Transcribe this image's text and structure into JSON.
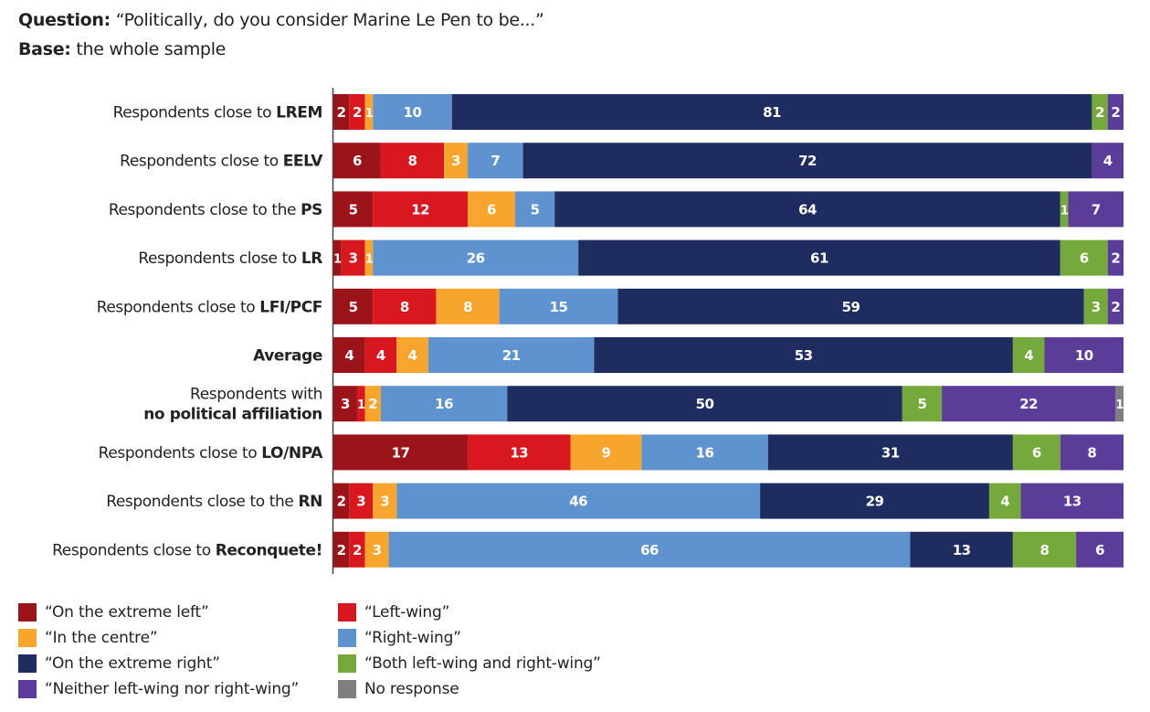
{
  "header": {
    "question_label": "Question:",
    "question_text": " “Politically, do you consider Marine Le Pen to be...”",
    "base_label": "Base:",
    "base_text": " the whole sample"
  },
  "chart_data": {
    "type": "bar",
    "orientation": "horizontal",
    "stacked": true,
    "title": "Politically, do you consider Marine Le Pen to be...",
    "xlabel": "",
    "ylabel": "",
    "xlim": [
      0,
      100
    ],
    "grid": false,
    "legend_position": "bottom",
    "categories": [
      {
        "prefix": "Respondents close to ",
        "bold": "LREM"
      },
      {
        "prefix": "Respondents close to ",
        "bold": "EELV"
      },
      {
        "prefix": "Respondents close to the ",
        "bold": "PS"
      },
      {
        "prefix": "Respondents close to ",
        "bold": "LR"
      },
      {
        "prefix": "Respondents close to ",
        "bold": "LFI/PCF"
      },
      {
        "prefix": "",
        "bold": "Average"
      },
      {
        "prefix": "Respondents with",
        "bold": "no political affiliation",
        "two_line": true
      },
      {
        "prefix": "Respondents close to ",
        "bold": "LO/NPA"
      },
      {
        "prefix": "Respondents close to the ",
        "bold": "RN"
      },
      {
        "prefix": "Respondents close to ",
        "bold": "Reconquete!"
      }
    ],
    "series": [
      {
        "name": "“On the extreme left”",
        "color": "#9b1419",
        "values": [
          2,
          6,
          5,
          1,
          5,
          4,
          3,
          17,
          2,
          2
        ]
      },
      {
        "name": "“Left-wing”",
        "color": "#d8171f",
        "values": [
          2,
          8,
          12,
          3,
          8,
          4,
          1,
          13,
          3,
          2
        ]
      },
      {
        "name": "“In the centre”",
        "color": "#f8a52d",
        "values": [
          1,
          3,
          6,
          1,
          8,
          4,
          2,
          9,
          3,
          3
        ]
      },
      {
        "name": "“Right-wing”",
        "color": "#5e93cf",
        "values": [
          10,
          7,
          5,
          26,
          15,
          21,
          16,
          16,
          46,
          66
        ]
      },
      {
        "name": "“On the extreme right”",
        "color": "#1f2c60",
        "values": [
          81,
          72,
          64,
          61,
          59,
          53,
          50,
          31,
          29,
          13
        ]
      },
      {
        "name": "“Both left-wing and right-wing”",
        "color": "#75a93c",
        "values": [
          2,
          0,
          1,
          6,
          3,
          4,
          5,
          6,
          4,
          8
        ]
      },
      {
        "name": "“Neither left-wing nor right-wing”",
        "color": "#5b3c99",
        "values": [
          2,
          4,
          7,
          2,
          2,
          10,
          22,
          8,
          13,
          6
        ]
      },
      {
        "name": "No response",
        "color": "#7f7f7f",
        "values": [
          0,
          0,
          0,
          0,
          0,
          0,
          1,
          0,
          0,
          0
        ]
      }
    ]
  },
  "legend": {
    "order": [
      0,
      1,
      2,
      3,
      4,
      5,
      6,
      7
    ]
  }
}
